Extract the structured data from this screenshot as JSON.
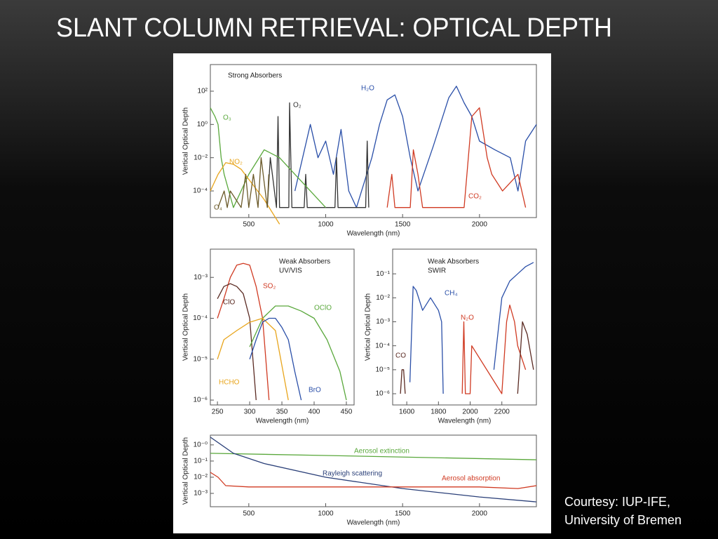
{
  "title": "SLANT COLUMN RETRIEVAL: OPTICAL DEPTH",
  "credit": [
    "Courtesy: IUP-IFE,",
    "University of Bremen"
  ],
  "chart_data": [
    {
      "type": "line",
      "title": [
        "Strong Absorbers"
      ],
      "xlabel": "Wavelength (nm)",
      "ylabel": "Vertical Optical Depth",
      "log_y": true,
      "xlim": [
        250,
        2370
      ],
      "ylim": [
        2.5e-06,
        4000
      ],
      "xticks": [
        500,
        1000,
        1500,
        2000
      ],
      "yticks": [
        {
          "value": 100,
          "label": "10²"
        },
        {
          "value": 1,
          "label": "10⁰"
        },
        {
          "value": 0.01,
          "label": "10⁻²"
        },
        {
          "value": 0.0001,
          "label": "10⁻⁴"
        }
      ],
      "series": [
        {
          "name": "H₂O",
          "color": "#2a4fa8",
          "x": [
            800,
            900,
            950,
            1000,
            1050,
            1100,
            1150,
            1200,
            1300,
            1350,
            1400,
            1450,
            1500,
            1550,
            1600,
            1700,
            1800,
            1850,
            1900,
            1950,
            2000,
            2100,
            2200,
            2250,
            2300,
            2370
          ],
          "values": [
            0.0001,
            1,
            0.01,
            0.1,
            0.001,
            0.5,
            0.0001,
            1e-05,
            0.01,
            1,
            30,
            60,
            3,
            0.01,
            0.0001,
            0.05,
            40,
            200,
            20,
            3,
            0.1,
            0.03,
            0.01,
            0.0001,
            0.1,
            1
          ]
        },
        {
          "name": "O₂",
          "color": "#333333",
          "x": [
            620,
            640,
            680,
            690,
            700,
            760,
            765,
            780,
            860,
            870,
            880,
            1060,
            1070,
            1080,
            1260,
            1270,
            1280
          ],
          "values": [
            1e-05,
            0.01,
            1e-05,
            3,
            1e-05,
            1e-05,
            20,
            1e-05,
            1e-05,
            0.001,
            1e-05,
            1e-05,
            0.01,
            1e-05,
            1e-05,
            0.1,
            1e-05
          ]
        },
        {
          "name": "O₃",
          "color": "#5aa83c",
          "x": [
            250,
            280,
            300,
            320,
            340,
            400,
            500,
            600,
            700,
            800,
            900,
            1000
          ],
          "values": [
            10,
            3,
            1,
            0.01,
            0.001,
            1e-05,
            0.001,
            0.03,
            0.01,
            0.001,
            0.0001,
            1e-05
          ]
        },
        {
          "name": "NO₂",
          "color": "#e8a51c",
          "x": [
            250,
            300,
            350,
            400,
            450,
            500,
            600,
            700
          ],
          "values": [
            0.0001,
            0.001,
            0.005,
            0.004,
            0.002,
            0.0005,
            3e-05,
            1e-06
          ]
        },
        {
          "name": "O₄",
          "color": "#6b5a2a",
          "x": [
            300,
            340,
            360,
            380,
            450,
            480,
            500,
            530,
            560,
            580,
            620,
            630
          ],
          "values": [
            1e-05,
            0.0001,
            1e-05,
            0.0001,
            1e-05,
            0.001,
            1e-05,
            0.001,
            1e-05,
            0.01,
            1e-05,
            0.001
          ]
        },
        {
          "name": "CO₂",
          "color": "#d03a22",
          "x": [
            1400,
            1430,
            1450,
            1550,
            1570,
            1600,
            1630,
            1900,
            1950,
            2000,
            2050,
            2080,
            2150,
            2250,
            2300
          ],
          "values": [
            1e-05,
            0.001,
            1e-05,
            1e-05,
            0.03,
            0.001,
            1e-05,
            1e-05,
            3,
            10,
            0.01,
            0.001,
            0.0001,
            0.001,
            1e-05
          ]
        }
      ]
    },
    {
      "type": "line",
      "title": [
        "Weak Absorbers",
        "UV/VIS"
      ],
      "xlabel": "Wavelength (nm)",
      "ylabel": "Vertical Optical Depth",
      "log_y": true,
      "xlim": [
        239,
        462
      ],
      "ylim": [
        7.6e-07,
        0.0049
      ],
      "xticks": [
        250,
        300,
        350,
        400,
        450
      ],
      "yticks": [
        {
          "value": 0.001,
          "label": "10⁻³"
        },
        {
          "value": 0.0001,
          "label": "10⁻⁴"
        },
        {
          "value": 1e-05,
          "label": "10⁻⁵"
        },
        {
          "value": 1e-06,
          "label": "10⁻⁶"
        }
      ],
      "series": [
        {
          "name": "SO₂",
          "color": "#d03a22",
          "x": [
            250,
            260,
            270,
            280,
            290,
            300,
            310,
            320,
            330
          ],
          "values": [
            0.0001,
            0.0003,
            0.001,
            0.002,
            0.0022,
            0.002,
            0.0006,
            0.0001,
            1e-06
          ]
        },
        {
          "name": "ClO",
          "color": "#5a2a22",
          "x": [
            250,
            260,
            270,
            280,
            290,
            300,
            310
          ],
          "values": [
            0.0003,
            0.0006,
            0.0007,
            0.0006,
            0.0004,
            0.0001,
            1e-06
          ]
        },
        {
          "name": "OClO",
          "color": "#5aa83c",
          "x": [
            300,
            320,
            340,
            360,
            380,
            400,
            420,
            440,
            450
          ],
          "values": [
            2e-05,
            0.0001,
            0.0002,
            0.0002,
            0.00015,
            0.0001,
            3e-05,
            5e-06,
            1e-06
          ]
        },
        {
          "name": "HCHO",
          "color": "#e8a51c",
          "x": [
            250,
            260,
            280,
            300,
            320,
            340,
            360
          ],
          "values": [
            1e-05,
            3e-05,
            5e-05,
            8e-05,
            0.0001,
            5e-05,
            1e-06
          ]
        },
        {
          "name": "BrO",
          "color": "#2a4fa8",
          "x": [
            300,
            310,
            320,
            330,
            340,
            350,
            360,
            370,
            380
          ],
          "values": [
            1e-05,
            3e-05,
            8e-05,
            0.0001,
            0.0001,
            6e-05,
            3e-05,
            5e-06,
            1e-06
          ]
        }
      ]
    },
    {
      "type": "line",
      "title": [
        "Weak Absorbers",
        "SWIR"
      ],
      "xlabel": "Wavelength (nm)",
      "ylabel": "Vertical Optical Depth",
      "log_y": true,
      "xlim": [
        1511,
        2418
      ],
      "ylim": [
        3.4e-07,
        1.07
      ],
      "xticks": [
        1600,
        1800,
        2000,
        2200
      ],
      "yticks": [
        {
          "value": 0.1,
          "label": "10⁻¹"
        },
        {
          "value": 0.01,
          "label": "10⁻²"
        },
        {
          "value": 0.001,
          "label": "10⁻³"
        },
        {
          "value": 0.0001,
          "label": "10⁻⁴"
        },
        {
          "value": 1e-05,
          "label": "10⁻⁵"
        },
        {
          "value": 1e-06,
          "label": "10⁻⁶"
        }
      ],
      "series": [
        {
          "name": "CH₄",
          "color": "#2a4fa8",
          "x": [
            1620,
            1640,
            1660,
            1700,
            1750,
            1800,
            1820,
            1830,
            1840,
            2150,
            2200,
            2250,
            2300,
            2350,
            2400
          ],
          "values": [
            3e-06,
            0.03,
            0.02,
            0.003,
            0.01,
            0.003,
            0.001,
            1e-06,
            null,
            1e-05,
            0.01,
            0.05,
            0.1,
            0.2,
            0.3
          ]
        },
        {
          "name": "N₂O",
          "color": "#d03a22",
          "x": [
            1950,
            1960,
            1970,
            2000,
            2010,
            2200,
            2230,
            2250,
            2280,
            2300,
            2350
          ],
          "values": [
            1e-06,
            0.001,
            1e-06,
            1e-06,
            0.0001,
            1e-06,
            0.001,
            0.005,
            0.001,
            0.0001,
            1e-05
          ]
        },
        {
          "name": "CO",
          "color": "#5a2a22",
          "x": [
            1560,
            1570,
            1580,
            1590,
            1600,
            2300,
            2330,
            2360,
            2400
          ],
          "values": [
            1e-06,
            1e-05,
            1e-05,
            1e-06,
            null,
            1e-06,
            0.001,
            0.0003,
            1e-05
          ]
        }
      ]
    },
    {
      "type": "line",
      "title": [],
      "xlabel": "Wavelength (nm)",
      "ylabel": "Vertical Optical Depth",
      "log_y": true,
      "xlim": [
        250,
        2370
      ],
      "ylim": [
        0.00015,
        4
      ],
      "xticks": [
        500,
        1000,
        1500,
        2000
      ],
      "yticks": [
        {
          "value": 1,
          "label": "10⁻⁰"
        },
        {
          "value": 0.1,
          "label": "10⁻¹"
        },
        {
          "value": 0.01,
          "label": "10⁻²"
        },
        {
          "value": 0.001,
          "label": "10⁻³"
        }
      ],
      "series": [
        {
          "name": "Aerosol extinction",
          "color": "#5aa83c",
          "x": [
            250,
            1000,
            2370
          ],
          "values": [
            0.3,
            0.22,
            0.12
          ]
        },
        {
          "name": "Rayleigh scattering",
          "color": "#2a3f78",
          "x": [
            250,
            400,
            600,
            1000,
            1500,
            2000,
            2370
          ],
          "values": [
            3,
            0.3,
            0.07,
            0.01,
            0.002,
            0.0006,
            0.0003
          ]
        },
        {
          "name": "Aerosol absorption",
          "color": "#d03a22",
          "x": [
            250,
            300,
            350,
            500,
            1000,
            1500,
            2000,
            2250,
            2370
          ],
          "values": [
            0.02,
            0.01,
            0.003,
            0.0025,
            0.0025,
            0.0025,
            0.0025,
            0.002,
            0.003
          ]
        }
      ]
    }
  ]
}
